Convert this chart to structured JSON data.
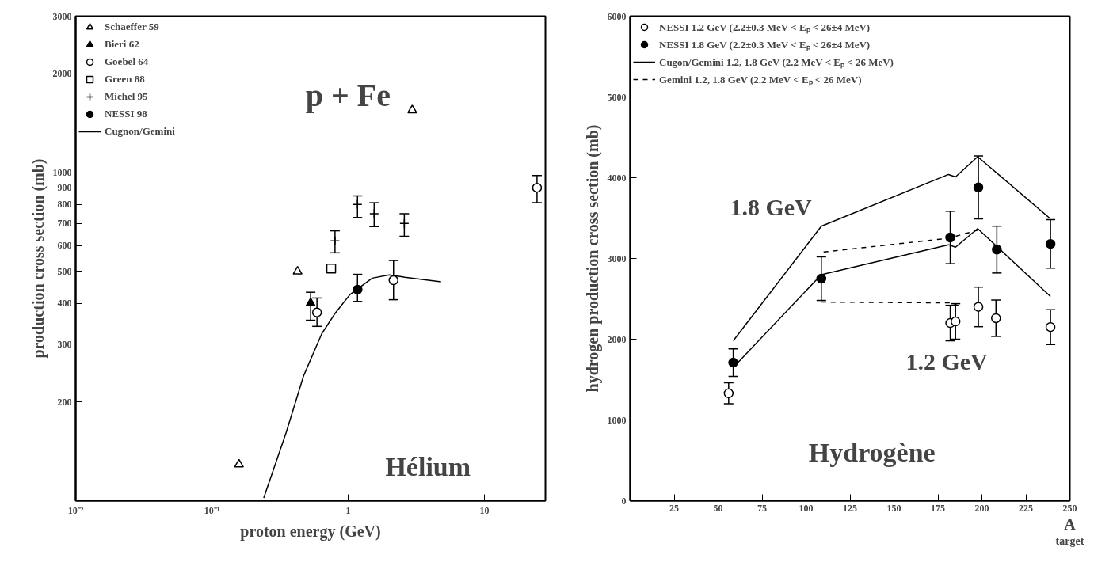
{
  "chart_data": [
    {
      "type": "scatter",
      "xlabel": "proton energy (GeV)",
      "ylabel": "production cross section (mb)",
      "log": "xy",
      "xlim": [
        0.01,
        28
      ],
      "xticks": [
        {
          "value": 0.01,
          "label": "10⁻²"
        },
        {
          "value": 0.1,
          "label": "10⁻¹"
        },
        1,
        10
      ],
      "ylim": [
        100,
        3000
      ],
      "yticks": [
        200,
        300,
        400,
        500,
        600,
        700,
        800,
        900,
        1000,
        2000,
        3000
      ],
      "legend": "top left",
      "grid": false,
      "annotations": [
        "p + Fe",
        "Hélium"
      ],
      "series": [
        {
          "name": "Schaeffer 59",
          "color": "#000000",
          "marker": "triangle_open",
          "x": [
            0.158,
            0.425,
            2.95
          ],
          "values": [
            129,
            500,
            1550
          ]
        },
        {
          "name": "Bieri 62",
          "color": "#000000",
          "marker": "triangle",
          "x": [
            0.53
          ],
          "values": [
            400
          ],
          "errors": [
            [
              355,
              432
            ]
          ]
        },
        {
          "name": "Goebel 64",
          "color": "#000000",
          "marker": "circle_open",
          "x": [
            0.59,
            2.15,
            24.3
          ],
          "values": [
            375,
            470,
            900
          ],
          "errors": [
            [
              340,
              415
            ],
            [
              410,
              540
            ],
            [
              810,
              980
            ]
          ]
        },
        {
          "name": "Green 88",
          "color": "#000000",
          "marker": "square_open",
          "x": [
            0.75
          ],
          "values": [
            510
          ]
        },
        {
          "name": "Michel 95",
          "color": "#000000",
          "marker": "cross",
          "x": [
            0.8,
            1.17,
            1.55,
            2.58
          ],
          "values": [
            620,
            800,
            750,
            700
          ],
          "errors": [
            [
              570,
              665
            ],
            [
              730,
              850
            ],
            [
              685,
              810
            ],
            [
              640,
              750
            ]
          ]
        },
        {
          "name": "NESSI 98",
          "color": "#000000",
          "marker": "circle",
          "x": [
            1.17
          ],
          "values": [
            440
          ],
          "errors": [
            [
              405,
              490
            ]
          ]
        },
        {
          "name": "Cugnon/Gemini",
          "color": "#000000",
          "type": "line",
          "line_style": "solid",
          "x": [
            0.24,
            0.35,
            0.47,
            0.64,
            0.81,
            1.03,
            1.5,
            2.0,
            2.6,
            4.8
          ],
          "values": [
            102,
            161,
            240,
            323,
            375,
            425,
            477,
            488,
            480,
            465
          ]
        }
      ]
    },
    {
      "type": "scatter",
      "xlabel": "A$_{target}$",
      "ylabel": "hydrogen production cross section (mb)",
      "xlim": [
        0,
        250
      ],
      "xticks": [
        25,
        50,
        75,
        100,
        125,
        150,
        175,
        200,
        225,
        250
      ],
      "ylim": [
        0,
        6000
      ],
      "yticks": [
        0,
        1000,
        2000,
        3000,
        4000,
        5000,
        6000
      ],
      "legend": "top left",
      "grid": false,
      "annotations": [
        "1.8 GeV",
        "1.2 GeV",
        "Hydrogène"
      ],
      "series": [
        {
          "name": "NESSI 1.2 GeV (2.2±0.3 MeV < Eₚ < 26±4 MeV)",
          "color": "#000000",
          "marker": "circle_open",
          "x": [
            56,
            182,
            185,
            198,
            208,
            239
          ],
          "values": [
            1330,
            2200,
            2220,
            2400,
            2260,
            2150
          ],
          "errors": [
            130,
            220,
            220,
            245,
            225,
            215
          ]
        },
        {
          "name": "NESSI 1.8 GeV (2.2±0.3 MeV < Eₚ < 26±4 MeV)",
          "color": "#000000",
          "marker": "circle",
          "x": [
            58.6,
            108.7,
            182,
            198,
            208.5,
            239
          ],
          "values": [
            1710,
            2750,
            3260,
            3880,
            3110,
            3180
          ],
          "errors": [
            170,
            270,
            325,
            390,
            290,
            300
          ]
        },
        {
          "name": "Cugon/Gemini 1.2, 1.8 GeV (2.2 MeV < Eₚ < 26 MeV)",
          "color": "#000000",
          "type": "line",
          "line_style": "solid",
          "x": [
            58.6,
            108.7,
            181,
            185,
            197.6,
            238.5
          ],
          "values": [
            1980,
            3400,
            4040,
            4010,
            4260,
            3500
          ]
        },
        {
          "color": "#000000",
          "type": "line",
          "line_style": "solid",
          "x": [
            58.6,
            108.7,
            181,
            185,
            197.6,
            239
          ],
          "values": [
            1650,
            2800,
            3170,
            3140,
            3370,
            2530
          ]
        },
        {
          "name": "Gemini 1.2, 1.8 GeV (2.2 MeV < Eₚ < 26 MeV)",
          "color": "#000000",
          "type": "line",
          "line_style": "dashed",
          "x": [
            110,
            181,
            197.6
          ],
          "values": [
            3080,
            3250,
            3350
          ]
        },
        {
          "color": "#000000",
          "type": "line",
          "line_style": "dashed",
          "x": [
            108.7,
            182,
            189
          ],
          "values": [
            2460,
            2450,
            2400
          ]
        }
      ]
    }
  ]
}
